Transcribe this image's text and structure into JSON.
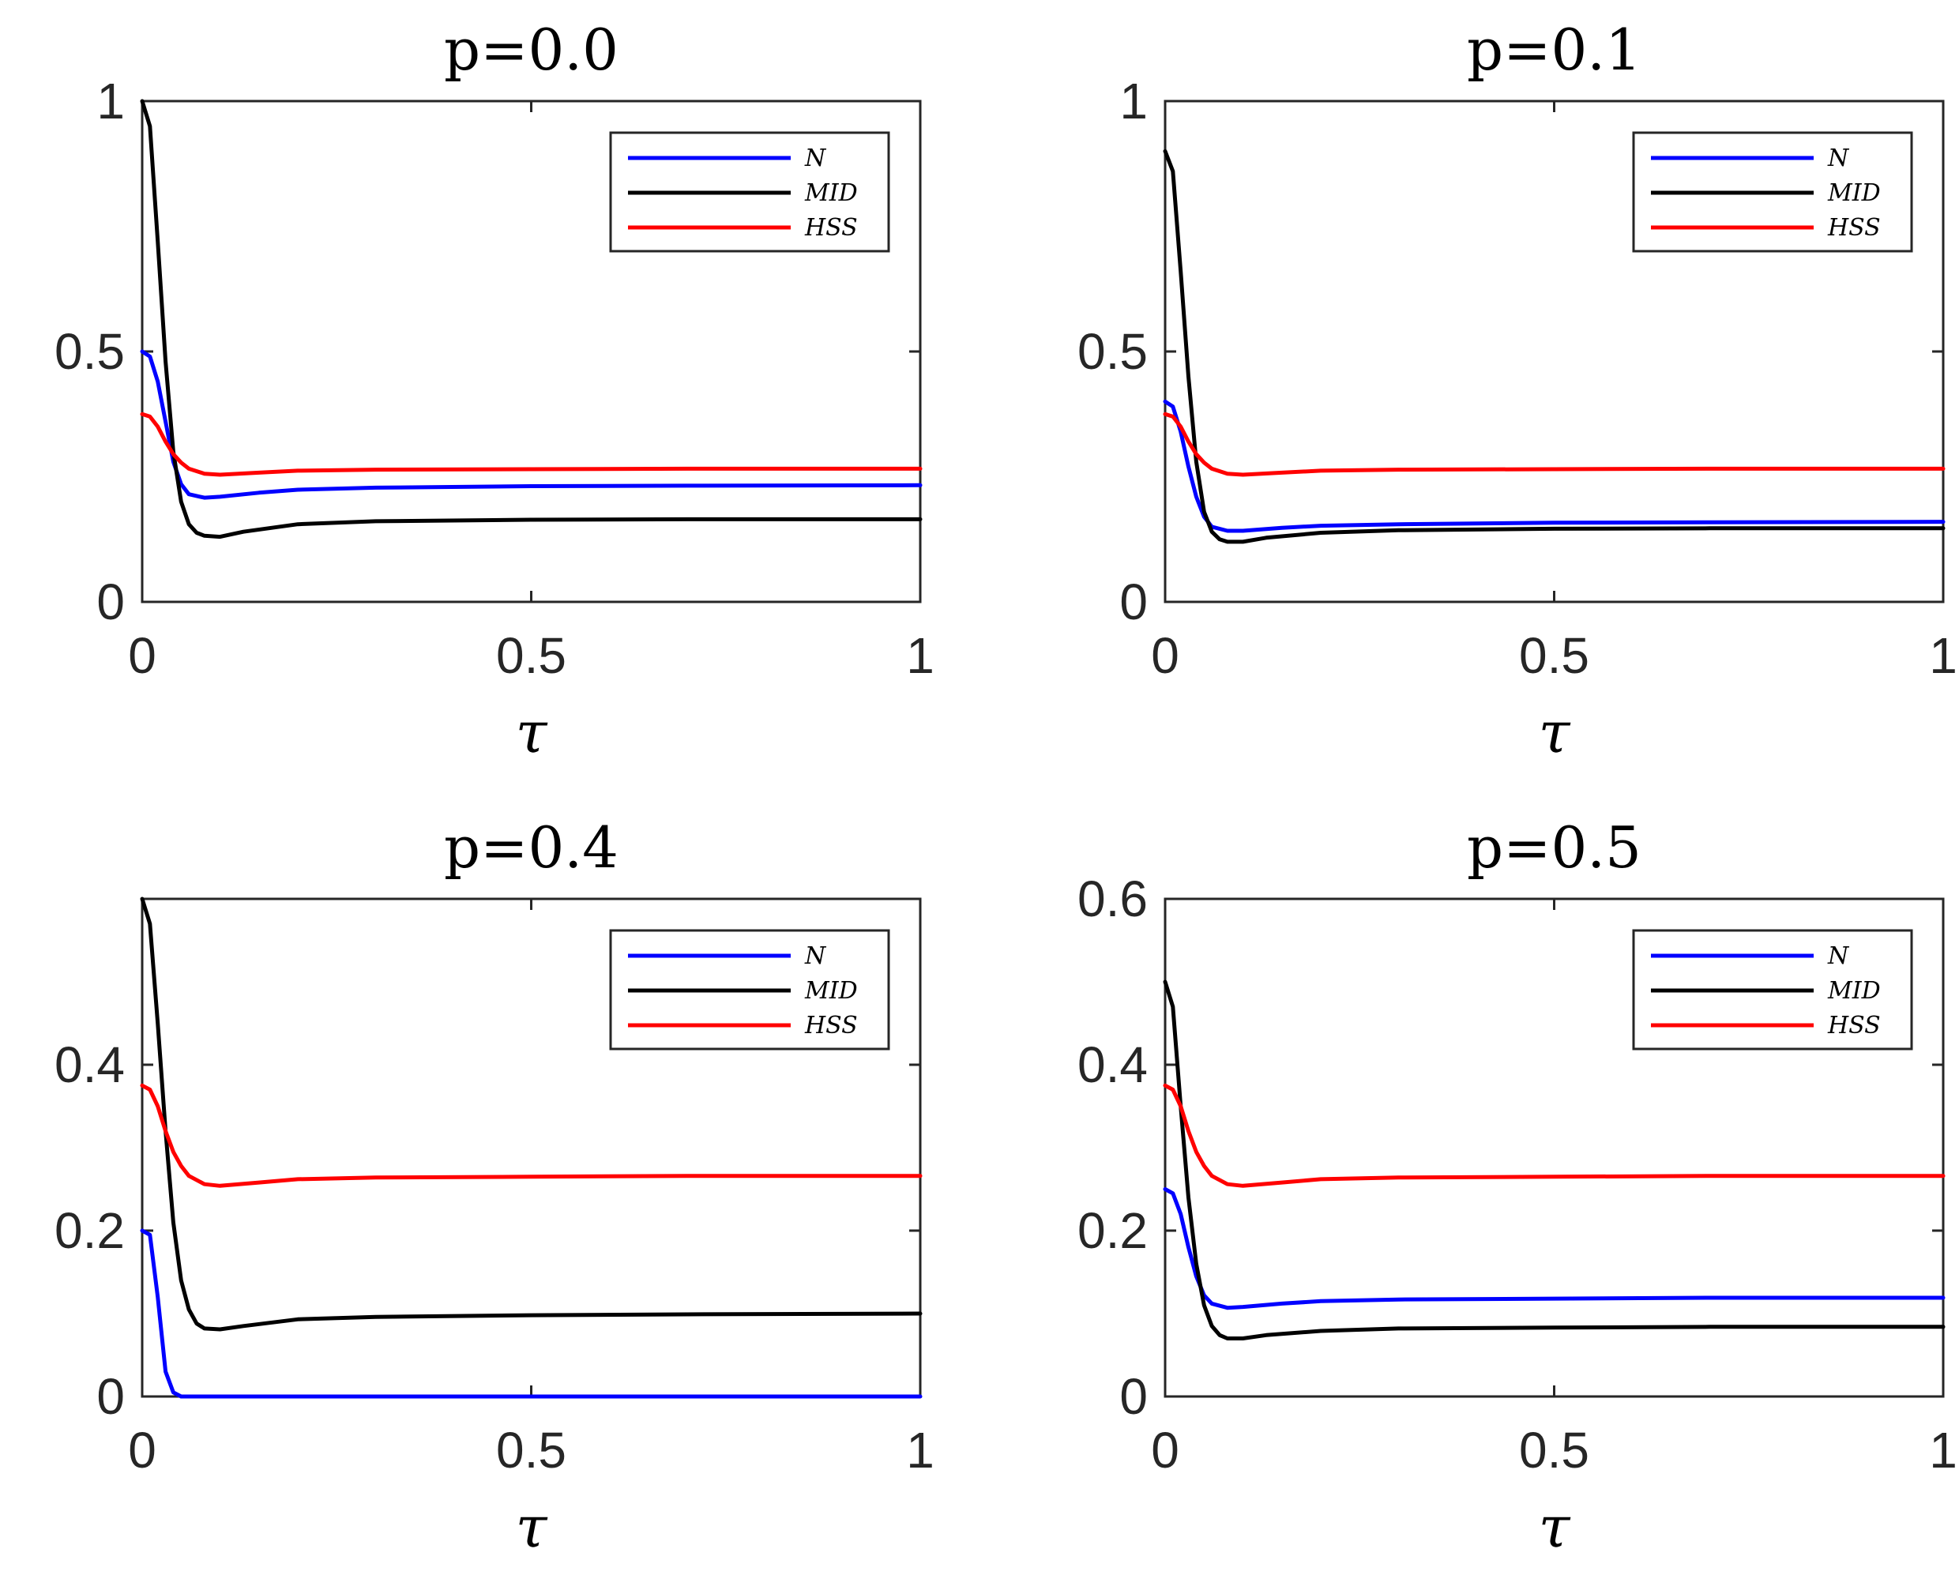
{
  "chart_data": [
    {
      "type": "line",
      "title": "p=0.0",
      "xlabel": "τ",
      "ylabel": "",
      "xlim": [
        0,
        1
      ],
      "ylim": [
        0,
        1
      ],
      "xticks": [
        0,
        0.5,
        1
      ],
      "xtick_labels": [
        "0",
        "0.5",
        "1"
      ],
      "yticks": [
        0,
        0.5,
        1
      ],
      "ytick_labels": [
        "0",
        "0.5",
        "1"
      ],
      "legend_position": "top-right",
      "series": [
        {
          "name": "N",
          "color": "#0000ff",
          "x": [
            0,
            0.01,
            0.02,
            0.03,
            0.04,
            0.05,
            0.06,
            0.08,
            0.1,
            0.15,
            0.2,
            0.3,
            0.5,
            0.7,
            1.0
          ],
          "y": [
            0.5,
            0.49,
            0.44,
            0.36,
            0.28,
            0.235,
            0.215,
            0.208,
            0.21,
            0.218,
            0.224,
            0.228,
            0.231,
            0.232,
            0.233
          ]
        },
        {
          "name": "MID",
          "color": "#000000",
          "x": [
            0,
            0.01,
            0.02,
            0.03,
            0.04,
            0.05,
            0.06,
            0.07,
            0.08,
            0.1,
            0.13,
            0.2,
            0.3,
            0.5,
            0.7,
            1.0
          ],
          "y": [
            1.0,
            0.95,
            0.72,
            0.48,
            0.3,
            0.2,
            0.155,
            0.138,
            0.132,
            0.13,
            0.14,
            0.155,
            0.161,
            0.164,
            0.165,
            0.165
          ]
        },
        {
          "name": "HSS",
          "color": "#ff0000",
          "x": [
            0,
            0.01,
            0.02,
            0.03,
            0.04,
            0.05,
            0.06,
            0.08,
            0.1,
            0.15,
            0.2,
            0.3,
            0.5,
            0.7,
            1.0
          ],
          "y": [
            0.375,
            0.37,
            0.35,
            0.32,
            0.295,
            0.278,
            0.266,
            0.256,
            0.254,
            0.258,
            0.262,
            0.264,
            0.265,
            0.266,
            0.266
          ]
        }
      ]
    },
    {
      "type": "line",
      "title": "p=0.1",
      "xlabel": "τ",
      "ylabel": "",
      "xlim": [
        0,
        1
      ],
      "ylim": [
        0,
        1
      ],
      "xticks": [
        0,
        0.5,
        1
      ],
      "xtick_labels": [
        "0",
        "0.5",
        "1"
      ],
      "yticks": [
        0,
        0.5,
        1
      ],
      "ytick_labels": [
        "0",
        "0.5",
        "1"
      ],
      "legend_position": "top-right",
      "series": [
        {
          "name": "N",
          "color": "#0000ff",
          "x": [
            0,
            0.01,
            0.02,
            0.03,
            0.04,
            0.05,
            0.06,
            0.08,
            0.1,
            0.15,
            0.2,
            0.3,
            0.5,
            0.7,
            1.0
          ],
          "y": [
            0.4,
            0.39,
            0.34,
            0.27,
            0.21,
            0.17,
            0.15,
            0.142,
            0.142,
            0.148,
            0.152,
            0.155,
            0.158,
            0.159,
            0.16
          ]
        },
        {
          "name": "MID",
          "color": "#000000",
          "x": [
            0,
            0.01,
            0.02,
            0.03,
            0.04,
            0.05,
            0.06,
            0.07,
            0.08,
            0.1,
            0.13,
            0.2,
            0.3,
            0.5,
            0.7,
            1.0
          ],
          "y": [
            0.9,
            0.86,
            0.66,
            0.45,
            0.28,
            0.18,
            0.14,
            0.125,
            0.12,
            0.12,
            0.128,
            0.138,
            0.143,
            0.146,
            0.147,
            0.147
          ]
        },
        {
          "name": "HSS",
          "color": "#ff0000",
          "x": [
            0,
            0.01,
            0.02,
            0.03,
            0.04,
            0.05,
            0.06,
            0.08,
            0.1,
            0.15,
            0.2,
            0.3,
            0.5,
            0.7,
            1.0
          ],
          "y": [
            0.375,
            0.37,
            0.35,
            0.32,
            0.295,
            0.278,
            0.266,
            0.256,
            0.254,
            0.258,
            0.262,
            0.264,
            0.265,
            0.266,
            0.266
          ]
        }
      ]
    },
    {
      "type": "line",
      "title": "p=0.4",
      "xlabel": "τ",
      "ylabel": "",
      "xlim": [
        0,
        1
      ],
      "ylim": [
        0,
        0.6
      ],
      "xticks": [
        0,
        0.5,
        1
      ],
      "xtick_labels": [
        "0",
        "0.5",
        "1"
      ],
      "yticks": [
        0,
        0.2,
        0.4
      ],
      "ytick_labels": [
        "0",
        "0.2",
        "0.4"
      ],
      "legend_position": "top-right",
      "series": [
        {
          "name": "N",
          "color": "#0000ff",
          "x": [
            0,
            0.01,
            0.02,
            0.03,
            0.04,
            0.05,
            1.0
          ],
          "y": [
            0.2,
            0.195,
            0.12,
            0.03,
            0.005,
            0,
            0
          ]
        },
        {
          "name": "MID",
          "color": "#000000",
          "x": [
            0,
            0.01,
            0.02,
            0.03,
            0.04,
            0.05,
            0.06,
            0.07,
            0.08,
            0.1,
            0.13,
            0.2,
            0.3,
            0.5,
            0.7,
            1.0
          ],
          "y": [
            0.6,
            0.57,
            0.45,
            0.32,
            0.21,
            0.14,
            0.105,
            0.088,
            0.082,
            0.081,
            0.085,
            0.093,
            0.096,
            0.098,
            0.099,
            0.1
          ]
        },
        {
          "name": "HSS",
          "color": "#ff0000",
          "x": [
            0,
            0.01,
            0.02,
            0.03,
            0.04,
            0.05,
            0.06,
            0.08,
            0.1,
            0.15,
            0.2,
            0.3,
            0.5,
            0.7,
            1.0
          ],
          "y": [
            0.375,
            0.37,
            0.35,
            0.32,
            0.295,
            0.278,
            0.266,
            0.256,
            0.254,
            0.258,
            0.262,
            0.264,
            0.265,
            0.266,
            0.266
          ]
        }
      ]
    },
    {
      "type": "line",
      "title": "p=0.5",
      "xlabel": "τ",
      "ylabel": "",
      "xlim": [
        0,
        1
      ],
      "ylim": [
        0,
        0.6
      ],
      "xticks": [
        0,
        0.5,
        1
      ],
      "xtick_labels": [
        "0",
        "0.5",
        "1"
      ],
      "yticks": [
        0,
        0.2,
        0.4,
        0.6
      ],
      "ytick_labels": [
        "0",
        "0.2",
        "0.4",
        "0.6"
      ],
      "legend_position": "top-right",
      "series": [
        {
          "name": "N",
          "color": "#0000ff",
          "x": [
            0,
            0.01,
            0.02,
            0.03,
            0.04,
            0.05,
            0.06,
            0.08,
            0.1,
            0.15,
            0.2,
            0.3,
            0.5,
            0.7,
            1.0
          ],
          "y": [
            0.25,
            0.245,
            0.22,
            0.18,
            0.145,
            0.122,
            0.112,
            0.107,
            0.108,
            0.112,
            0.115,
            0.117,
            0.118,
            0.119,
            0.119
          ]
        },
        {
          "name": "MID",
          "color": "#000000",
          "x": [
            0,
            0.01,
            0.02,
            0.03,
            0.04,
            0.05,
            0.06,
            0.07,
            0.08,
            0.1,
            0.13,
            0.2,
            0.3,
            0.5,
            0.7,
            1.0
          ],
          "y": [
            0.5,
            0.47,
            0.35,
            0.24,
            0.16,
            0.11,
            0.085,
            0.074,
            0.07,
            0.07,
            0.074,
            0.079,
            0.082,
            0.083,
            0.084,
            0.084
          ]
        },
        {
          "name": "HSS",
          "color": "#ff0000",
          "x": [
            0,
            0.01,
            0.02,
            0.03,
            0.04,
            0.05,
            0.06,
            0.08,
            0.1,
            0.15,
            0.2,
            0.3,
            0.5,
            0.7,
            1.0
          ],
          "y": [
            0.375,
            0.37,
            0.35,
            0.32,
            0.295,
            0.278,
            0.266,
            0.256,
            0.254,
            0.258,
            0.262,
            0.264,
            0.265,
            0.266,
            0.266
          ]
        }
      ]
    }
  ]
}
